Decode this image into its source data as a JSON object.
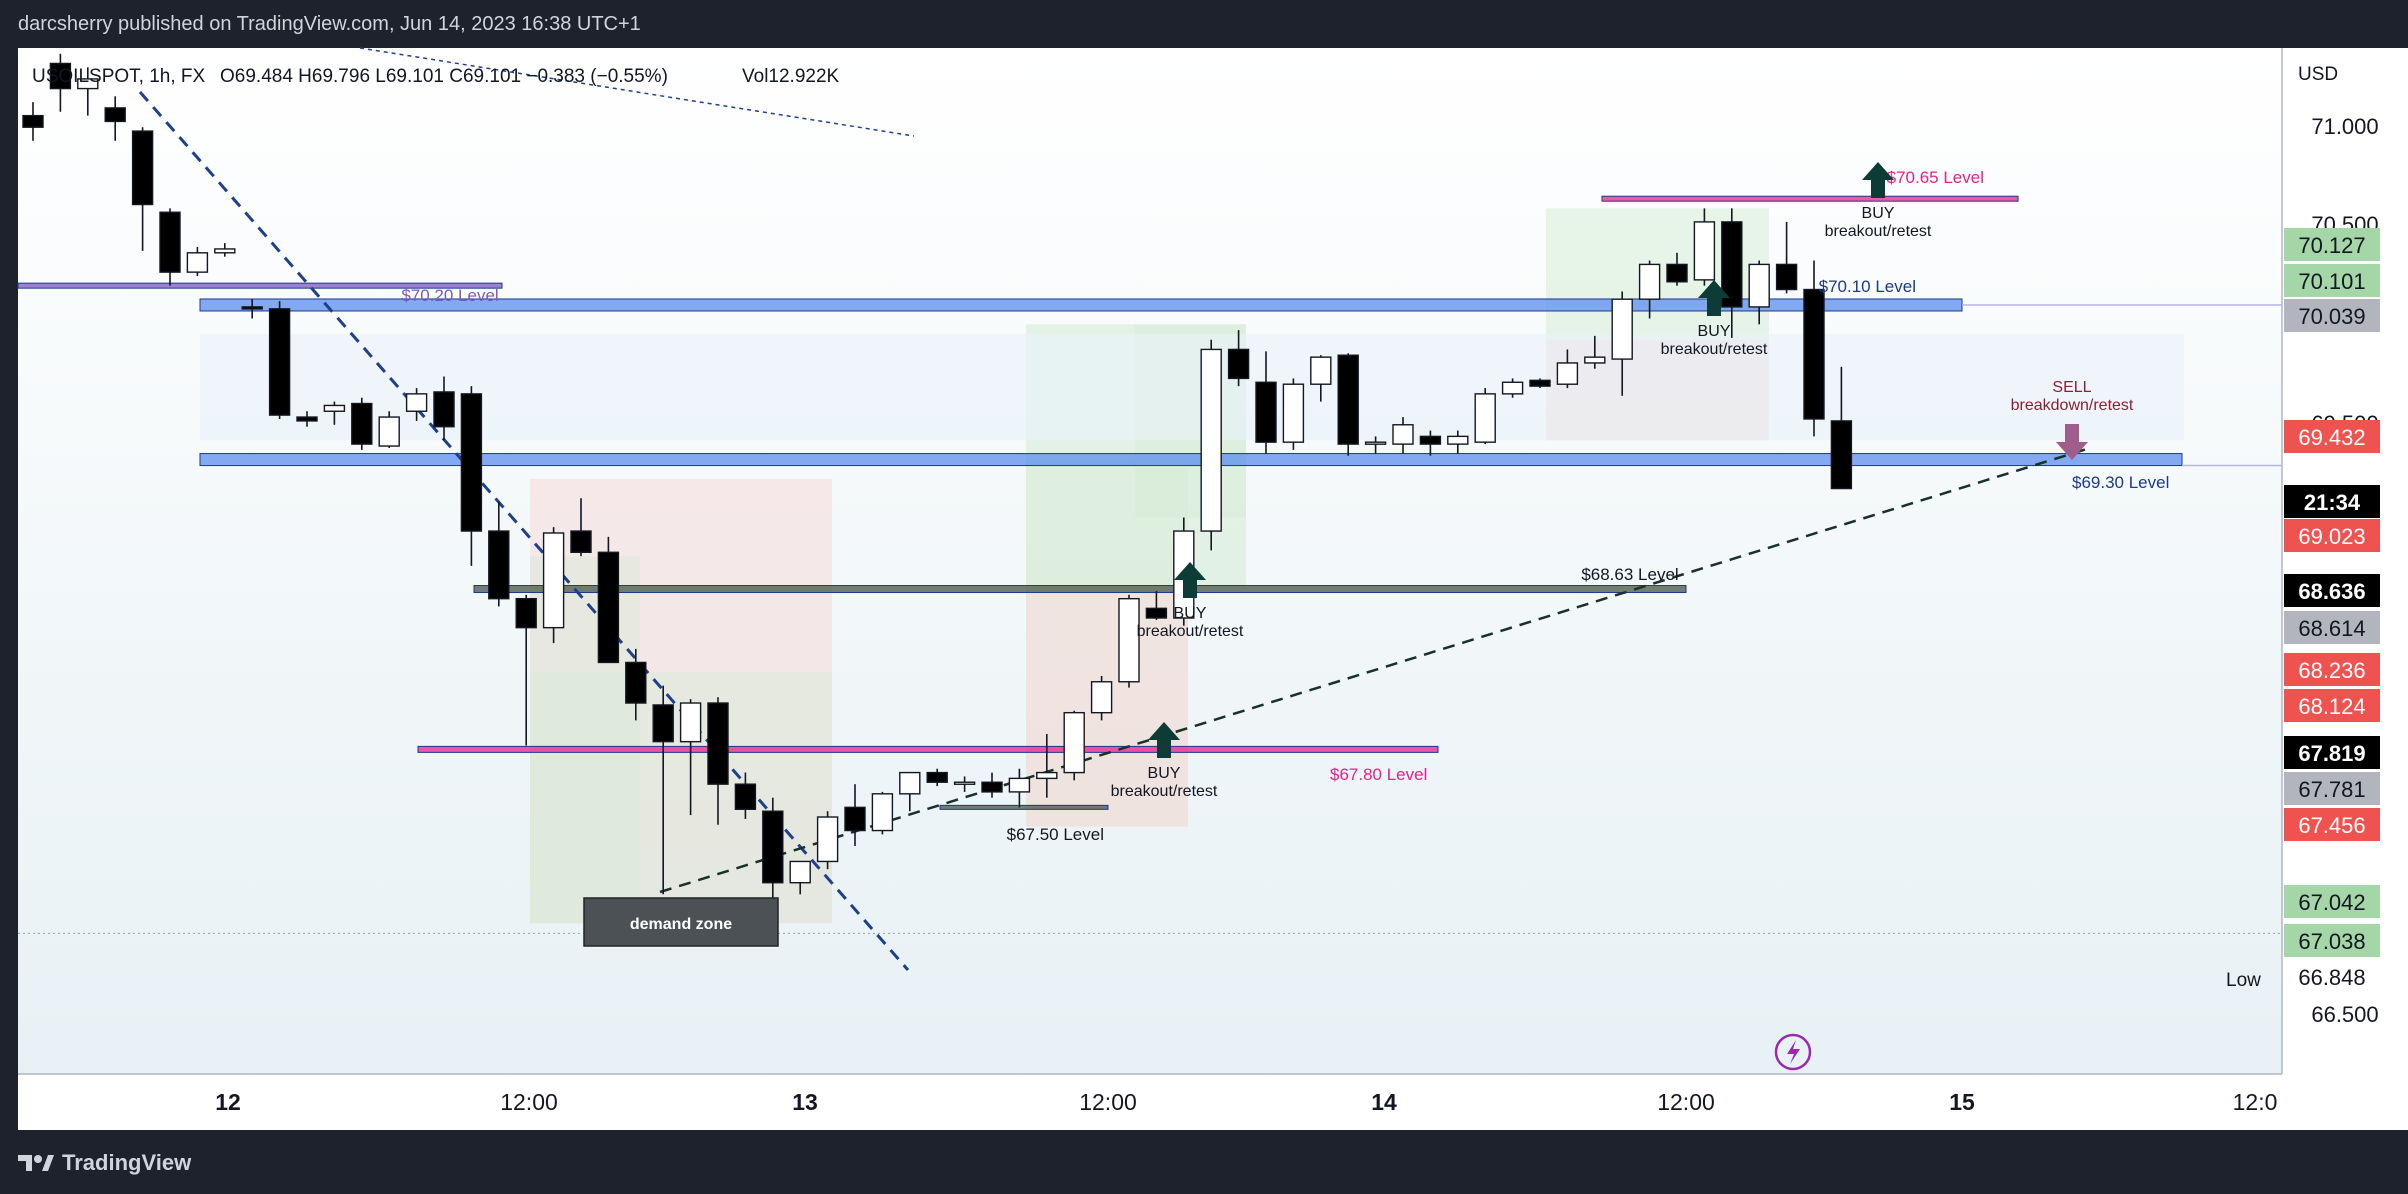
{
  "header": {
    "publisher_line": "darcsherry published on TradingView.com, Jun 14, 2023 16:38 UTC+1"
  },
  "legend": {
    "symbol": "USOILSPOT, 1h, FX",
    "ohlc": "O69.484  H69.796  L69.101  C69.101  −0.383 (−0.55%)",
    "volume": "Vol12.922K"
  },
  "footer": {
    "brand": "TradingView"
  },
  "colors": {
    "blue_zone": "#5b8def",
    "magenta_level": "#e91e8c",
    "purple_level": "#7e57c2",
    "dark_level": "#4a5448",
    "buy_arrow": "#0d3b35",
    "sell_arrow": "#a05c8a",
    "price_red": "#ef5350",
    "price_green": "#a5d6a7"
  },
  "chart_data": {
    "type": "candlestick",
    "symbol": "USOILSPOT",
    "timeframe": "1h",
    "currency": "USD",
    "ylim": [
      66.12,
      71.43
    ],
    "x_ticks": [
      "12",
      "12:00",
      "13",
      "12:00",
      "14",
      "12:00",
      "15",
      "12:0"
    ],
    "y_ticks": [
      "71.000",
      "70.500",
      "69.500",
      "66.500"
    ],
    "candles": [
      {
        "o": 71.08,
        "h": 71.15,
        "l": 70.95,
        "c": 71.02
      },
      {
        "o": 71.35,
        "h": 71.4,
        "l": 71.1,
        "c": 71.22
      },
      {
        "o": 71.22,
        "h": 71.33,
        "l": 71.08,
        "c": 71.27
      },
      {
        "o": 71.12,
        "h": 71.18,
        "l": 70.95,
        "c": 71.05
      },
      {
        "o": 71.0,
        "h": 71.02,
        "l": 70.38,
        "c": 70.62
      },
      {
        "o": 70.58,
        "h": 70.6,
        "l": 70.2,
        "c": 70.27
      },
      {
        "o": 70.27,
        "h": 70.4,
        "l": 70.25,
        "c": 70.37
      },
      {
        "o": 70.37,
        "h": 70.42,
        "l": 70.35,
        "c": 70.39
      },
      {
        "o": 70.09,
        "h": 70.13,
        "l": 70.03,
        "c": 70.08
      },
      {
        "o": 70.08,
        "h": 70.12,
        "l": 69.51,
        "c": 69.53
      },
      {
        "o": 69.52,
        "h": 69.55,
        "l": 69.47,
        "c": 69.5
      },
      {
        "o": 69.55,
        "h": 69.6,
        "l": 69.48,
        "c": 69.58
      },
      {
        "o": 69.59,
        "h": 69.62,
        "l": 69.35,
        "c": 69.38
      },
      {
        "o": 69.37,
        "h": 69.55,
        "l": 69.36,
        "c": 69.52
      },
      {
        "o": 69.55,
        "h": 69.67,
        "l": 69.5,
        "c": 69.64
      },
      {
        "o": 69.65,
        "h": 69.73,
        "l": 69.4,
        "c": 69.47
      },
      {
        "o": 69.64,
        "h": 69.68,
        "l": 68.75,
        "c": 68.93
      },
      {
        "o": 68.93,
        "h": 69.08,
        "l": 68.54,
        "c": 68.58
      },
      {
        "o": 68.58,
        "h": 68.6,
        "l": 67.82,
        "c": 68.43
      },
      {
        "o": 68.43,
        "h": 68.95,
        "l": 68.35,
        "c": 68.92
      },
      {
        "o": 68.93,
        "h": 69.1,
        "l": 68.8,
        "c": 68.82
      },
      {
        "o": 68.82,
        "h": 68.9,
        "l": 68.27,
        "c": 68.25
      },
      {
        "o": 68.25,
        "h": 68.32,
        "l": 67.95,
        "c": 68.04
      },
      {
        "o": 68.03,
        "h": 68.13,
        "l": 67.05,
        "c": 67.84
      },
      {
        "o": 67.84,
        "h": 68.06,
        "l": 67.46,
        "c": 68.04
      },
      {
        "o": 68.04,
        "h": 68.07,
        "l": 67.41,
        "c": 67.62
      },
      {
        "o": 67.62,
        "h": 67.68,
        "l": 67.44,
        "c": 67.49
      },
      {
        "o": 67.48,
        "h": 67.55,
        "l": 67.03,
        "c": 67.11
      },
      {
        "o": 67.11,
        "h": 67.22,
        "l": 67.05,
        "c": 67.22
      },
      {
        "o": 67.22,
        "h": 67.48,
        "l": 67.18,
        "c": 67.45
      },
      {
        "o": 67.5,
        "h": 67.62,
        "l": 67.3,
        "c": 67.38
      },
      {
        "o": 67.38,
        "h": 67.58,
        "l": 67.36,
        "c": 67.57
      },
      {
        "o": 67.57,
        "h": 67.68,
        "l": 67.48,
        "c": 67.68
      },
      {
        "o": 67.68,
        "h": 67.7,
        "l": 67.61,
        "c": 67.63
      },
      {
        "o": 67.62,
        "h": 67.66,
        "l": 67.58,
        "c": 67.63
      },
      {
        "o": 67.63,
        "h": 67.68,
        "l": 67.55,
        "c": 67.58
      },
      {
        "o": 67.58,
        "h": 67.7,
        "l": 67.5,
        "c": 67.65
      },
      {
        "o": 67.65,
        "h": 67.88,
        "l": 67.55,
        "c": 67.68
      },
      {
        "o": 67.68,
        "h": 68.0,
        "l": 67.64,
        "c": 67.99
      },
      {
        "o": 67.99,
        "h": 68.18,
        "l": 67.95,
        "c": 68.15
      },
      {
        "o": 68.15,
        "h": 68.6,
        "l": 68.12,
        "c": 68.58
      },
      {
        "o": 68.53,
        "h": 68.62,
        "l": 68.47,
        "c": 68.48
      },
      {
        "o": 68.48,
        "h": 69.0,
        "l": 68.44,
        "c": 68.93
      },
      {
        "o": 68.93,
        "h": 69.92,
        "l": 68.83,
        "c": 69.87
      },
      {
        "o": 69.87,
        "h": 69.97,
        "l": 69.68,
        "c": 69.72
      },
      {
        "o": 69.7,
        "h": 69.86,
        "l": 69.33,
        "c": 69.39
      },
      {
        "o": 69.39,
        "h": 69.72,
        "l": 69.35,
        "c": 69.69
      },
      {
        "o": 69.69,
        "h": 69.84,
        "l": 69.6,
        "c": 69.83
      },
      {
        "o": 69.84,
        "h": 69.85,
        "l": 69.32,
        "c": 69.38
      },
      {
        "o": 69.38,
        "h": 69.42,
        "l": 69.33,
        "c": 69.39
      },
      {
        "o": 69.38,
        "h": 69.52,
        "l": 69.33,
        "c": 69.48
      },
      {
        "o": 69.42,
        "h": 69.45,
        "l": 69.32,
        "c": 69.38
      },
      {
        "o": 69.38,
        "h": 69.45,
        "l": 69.33,
        "c": 69.42
      },
      {
        "o": 69.39,
        "h": 69.67,
        "l": 69.38,
        "c": 69.64
      },
      {
        "o": 69.64,
        "h": 69.72,
        "l": 69.62,
        "c": 69.7
      },
      {
        "o": 69.71,
        "h": 69.72,
        "l": 69.67,
        "c": 69.68
      },
      {
        "o": 69.69,
        "h": 69.87,
        "l": 69.67,
        "c": 69.8
      },
      {
        "o": 69.8,
        "h": 69.94,
        "l": 69.77,
        "c": 69.83
      },
      {
        "o": 69.82,
        "h": 70.17,
        "l": 69.63,
        "c": 70.13
      },
      {
        "o": 70.13,
        "h": 70.33,
        "l": 70.03,
        "c": 70.31
      },
      {
        "o": 70.31,
        "h": 70.37,
        "l": 70.2,
        "c": 70.22
      },
      {
        "o": 70.23,
        "h": 70.6,
        "l": 70.2,
        "c": 70.53
      },
      {
        "o": 70.53,
        "h": 70.6,
        "l": 69.93,
        "c": 70.09
      },
      {
        "o": 70.09,
        "h": 70.33,
        "l": 70.0,
        "c": 70.31
      },
      {
        "o": 70.31,
        "h": 70.53,
        "l": 70.16,
        "c": 70.18
      },
      {
        "o": 70.18,
        "h": 70.33,
        "l": 69.42,
        "c": 69.51
      },
      {
        "o": 69.5,
        "h": 69.78,
        "l": 69.15,
        "c": 69.15
      }
    ],
    "levels": [
      {
        "label": "$70.65 Level",
        "price": 70.65
      },
      {
        "label": "$70.10 Level",
        "price": 70.1
      },
      {
        "label": "$69.30 Level",
        "price": 69.3
      },
      {
        "label": "$68.63 Level",
        "price": 68.63
      },
      {
        "label": "$67.80 Level",
        "price": 67.8
      },
      {
        "label": "$67.50 Level",
        "price": 67.5
      },
      {
        "label": "$70.20 Level",
        "price": 70.2
      }
    ],
    "annotations": [
      {
        "label": "BUY",
        "sub": "breakout/retest"
      },
      {
        "label": "BUY",
        "sub": "breakout/retest"
      },
      {
        "label": "BUY",
        "sub": "breakout/retest"
      },
      {
        "label": "BUY",
        "sub": "breakout/retest"
      },
      {
        "label": "SELL",
        "sub": "breakdown/retest"
      },
      {
        "label": "demand zone"
      }
    ],
    "price_tags": [
      {
        "value": "70.127",
        "color": "#a5d6a7"
      },
      {
        "value": "70.101",
        "color": "#a5d6a7"
      },
      {
        "value": "70.039",
        "color": "#b2b5be"
      },
      {
        "value": "69.432",
        "color": "#ef5350"
      },
      {
        "value": "21:34",
        "color": "#000000"
      },
      {
        "value": "69.023",
        "color": "#ef5350"
      },
      {
        "value": "68.636",
        "color": "#000000"
      },
      {
        "value": "68.614",
        "color": "#b2b5be"
      },
      {
        "value": "68.236",
        "color": "#ef5350"
      },
      {
        "value": "68.124",
        "color": "#ef5350"
      },
      {
        "value": "67.819",
        "color": "#000000"
      },
      {
        "value": "67.781",
        "color": "#b2b5be"
      },
      {
        "value": "67.456",
        "color": "#ef5350"
      },
      {
        "value": "67.042",
        "color": "#a5d6a7"
      },
      {
        "value": "67.038",
        "color": "#a5d6a7"
      },
      {
        "value": "66.848",
        "color": "#ffffff"
      }
    ],
    "low_label": "Low",
    "grid": false
  }
}
